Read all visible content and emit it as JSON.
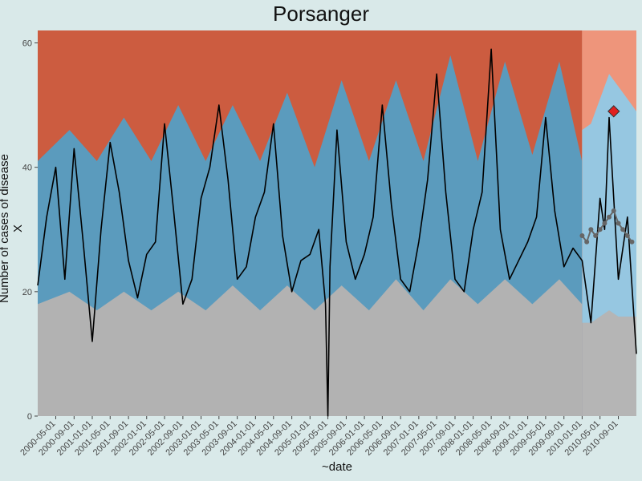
{
  "chart_data": {
    "type": "line",
    "title": "Porsanger",
    "xlabel": "~date",
    "ylabel": "Number of cases of disease X",
    "ylim": [
      0,
      62
    ],
    "y_ticks": [
      0,
      20,
      40,
      60
    ],
    "x_tick_labels": [
      "2000-05-01",
      "2000-09-01",
      "2001-01-01",
      "2001-05-01",
      "2001-09-01",
      "2002-01-01",
      "2002-05-01",
      "2002-09-01",
      "2003-01-01",
      "2003-05-01",
      "2003-09-01",
      "2004-01-01",
      "2004-05-01",
      "2004-09-01",
      "2005-01-01",
      "2005-05-01",
      "2005-09-01",
      "2006-01-01",
      "2006-05-01",
      "2006-09-01",
      "2007-01-01",
      "2007-05-01",
      "2007-09-01",
      "2008-01-01",
      "2008-05-01",
      "2008-09-01",
      "2009-01-01",
      "2009-05-01",
      "2009-09-01",
      "2010-01-01",
      "2010-05-01",
      "2010-09-01"
    ],
    "x_range": [
      "2000-01-01",
      "2010-12-31"
    ],
    "forecast_start": "2010-01-01",
    "baseline_bands": {
      "description_dates": [
        "2000-01-01",
        "2000-08-01",
        "2001-02-01",
        "2001-08-01",
        "2002-02-01",
        "2002-08-01",
        "2003-02-01",
        "2003-08-01",
        "2004-02-01",
        "2004-08-01",
        "2005-02-01",
        "2005-08-01",
        "2006-02-01",
        "2006-08-01",
        "2007-02-01",
        "2007-08-01",
        "2008-02-01",
        "2008-08-01",
        "2009-02-01",
        "2009-08-01",
        "2009-12-31"
      ],
      "grey_upper": [
        18,
        20,
        17,
        20,
        17,
        20,
        17,
        21,
        17,
        21,
        17,
        21,
        17,
        22,
        17,
        22,
        18,
        22,
        18,
        22,
        18
      ],
      "blue_upper": [
        41,
        46,
        41,
        48,
        41,
        50,
        41,
        50,
        41,
        52,
        40,
        54,
        41,
        54,
        41,
        58,
        41,
        57,
        42,
        57,
        41
      ]
    },
    "forecast_bands": {
      "dates": [
        "2010-01-01",
        "2010-03-01",
        "2010-05-01",
        "2010-07-01",
        "2010-09-01",
        "2010-11-01",
        "2010-12-31"
      ],
      "grey_upper": [
        15,
        15,
        16,
        17,
        16,
        16,
        16
      ],
      "blue_upper": [
        46,
        47,
        51,
        55,
        53,
        51,
        49
      ]
    },
    "series": [
      {
        "name": "",
        "x": [
          "2000-01-01",
          "2000-03-01",
          "2000-05-01",
          "2000-07-01",
          "2000-09-01",
          "2000-11-01",
          "2001-01-01",
          "2001-03-01",
          "2001-05-01",
          "2001-07-01",
          "2001-09-01",
          "2001-11-01",
          "2002-01-01",
          "2002-03-01",
          "2002-05-01",
          "2002-07-01",
          "2002-09-01",
          "2002-11-01",
          "2003-01-01",
          "2003-03-01",
          "2003-05-01",
          "2003-07-01",
          "2003-09-01",
          "2003-11-01",
          "2004-01-01",
          "2004-03-01",
          "2004-05-01",
          "2004-07-01",
          "2004-09-01",
          "2004-11-01",
          "2005-01-01",
          "2005-03-01",
          "2005-04-15",
          "2005-05-01",
          "2005-05-15",
          "2005-07-01",
          "2005-09-01",
          "2005-11-01",
          "2006-01-01",
          "2006-03-01",
          "2006-05-01",
          "2006-07-01",
          "2006-09-01",
          "2006-11-01",
          "2007-01-01",
          "2007-03-01",
          "2007-05-01",
          "2007-07-01",
          "2007-09-01",
          "2007-11-01",
          "2008-01-01",
          "2008-03-01",
          "2008-05-01",
          "2008-07-01",
          "2008-09-01",
          "2008-11-01",
          "2009-01-01",
          "2009-03-01",
          "2009-05-01",
          "2009-07-01",
          "2009-09-01",
          "2009-11-01",
          "2010-01-01",
          "2010-03-01",
          "2010-05-01",
          "2010-06-01",
          "2010-07-01",
          "2010-09-01",
          "2010-11-01",
          "2010-12-31"
        ],
        "values": [
          21,
          32,
          40,
          22,
          43,
          28,
          12,
          30,
          44,
          36,
          25,
          19,
          26,
          28,
          47,
          33,
          18,
          22,
          35,
          40,
          50,
          38,
          22,
          24,
          32,
          36,
          47,
          29,
          20,
          25,
          26,
          30,
          18,
          0,
          24,
          46,
          28,
          22,
          26,
          32,
          50,
          34,
          22,
          20,
          28,
          38,
          55,
          36,
          22,
          20,
          30,
          36,
          59,
          30,
          22,
          25,
          28,
          32,
          48,
          33,
          24,
          27,
          25,
          15,
          35,
          30,
          48,
          22,
          32,
          10
        ]
      }
    ],
    "forecast_series": {
      "x": [
        "2010-01-01",
        "2010-02-01",
        "2010-03-01",
        "2010-04-01",
        "2010-05-01",
        "2010-06-01",
        "2010-07-01",
        "2010-08-01",
        "2010-09-01",
        "2010-10-01",
        "2010-11-01",
        "2010-12-01"
      ],
      "values": [
        29,
        28,
        30,
        29,
        30,
        31,
        32,
        33,
        31,
        30,
        29,
        28
      ]
    },
    "highlight_point": {
      "x": "2010-08-01",
      "y": 49
    },
    "colors": {
      "background": "#d9e9e9",
      "alarm_region": "#cc5c40",
      "alarm_region_forecast": "#f88c6c",
      "band_blue": "#5b9bbd",
      "band_blue_forecast": "#8dc8e8",
      "band_grey": "#b2b2b2",
      "forecast_shade": "#c0c0c0",
      "observed_line": "#000000",
      "forecast_points": "#666666",
      "highlight": "#e02020"
    }
  }
}
